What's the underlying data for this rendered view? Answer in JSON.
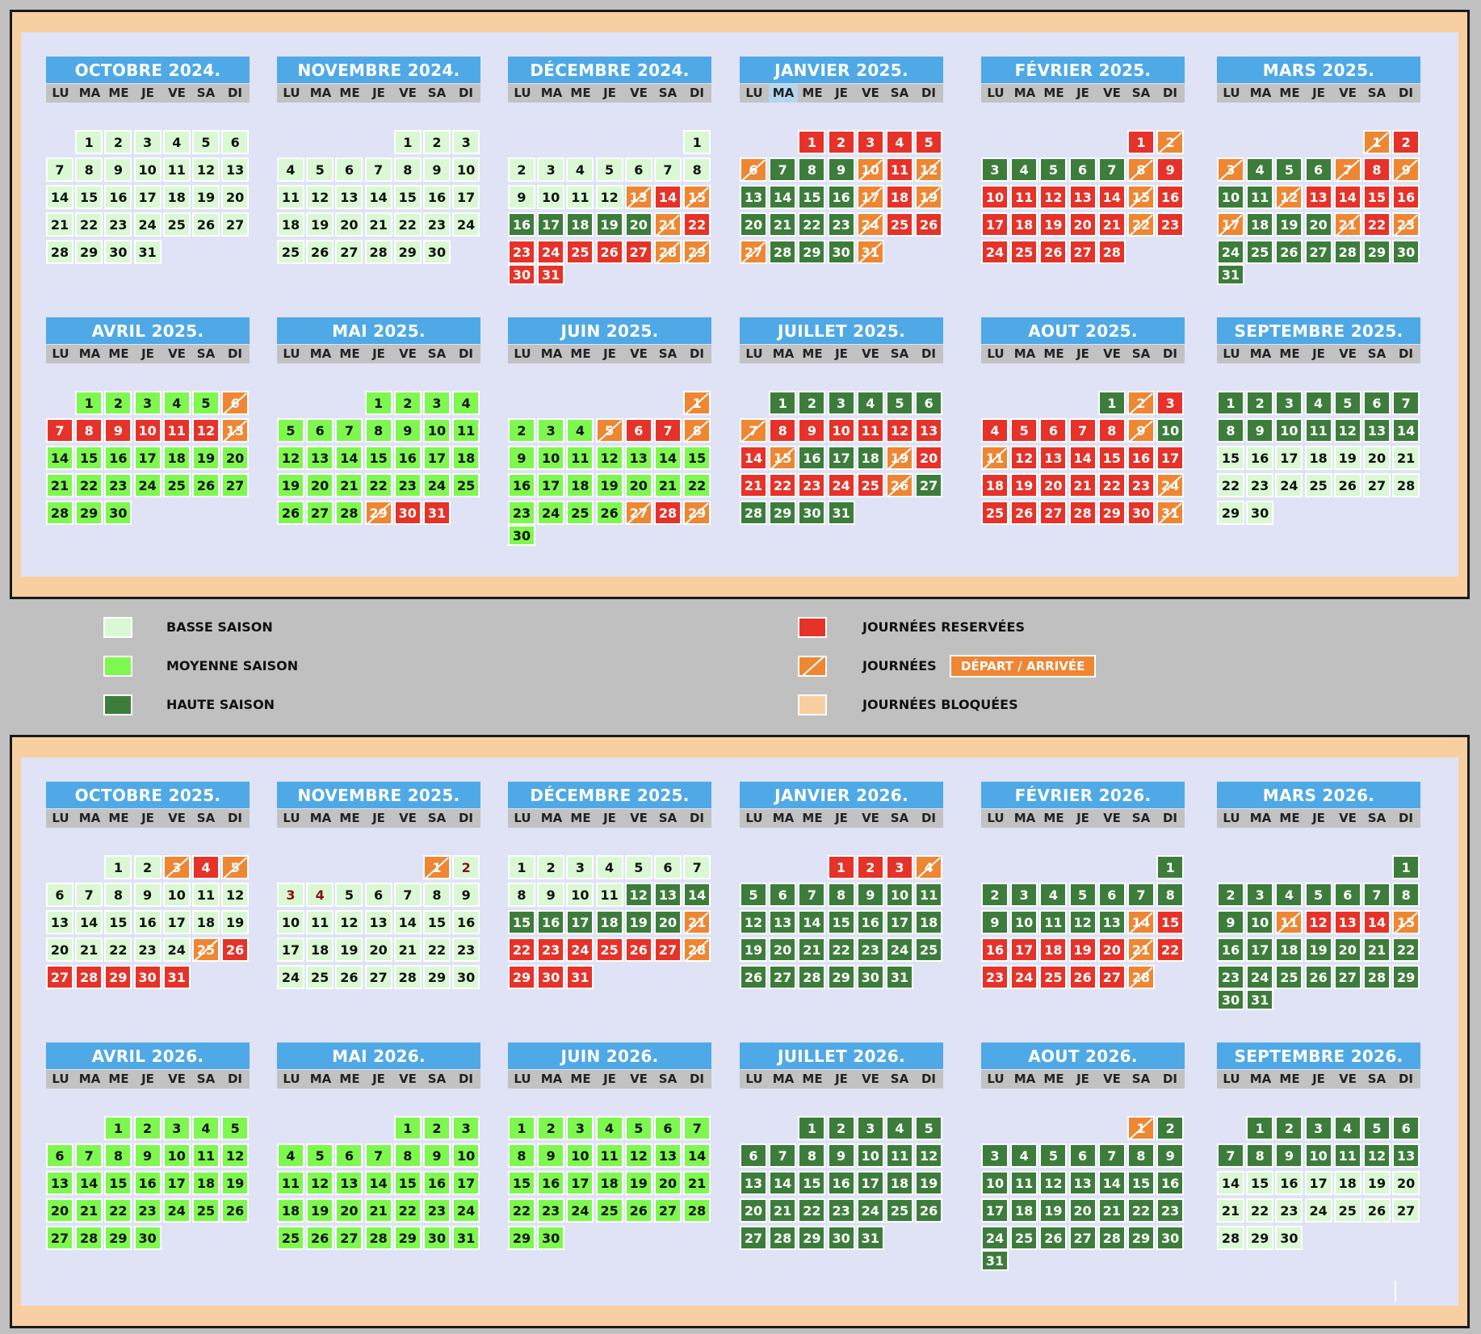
{
  "weekdays": [
    "LU",
    "MA",
    "ME",
    "JE",
    "VE",
    "SA",
    "DI"
  ],
  "legend": {
    "basse": "BASSE SAISON",
    "moyenne": "MOYENNE SAISON",
    "haute": "HAUTE SAISON",
    "reservees": "JOURNÉES RESERVÉES",
    "journees": "JOURNÉES",
    "depart_arrivee": "DÉPART / ARRIVÉE",
    "bloquees": "JOURNÉES BLOQUÉES"
  },
  "colors": {
    "basse": "#d9f8d3",
    "moyenne": "#7ef84e",
    "haute": "#3d7d3b",
    "reservee": "#e63228",
    "depart_arrivee": "#ef8632",
    "bloquee": "#f8cfa0",
    "month_header": "#4fa9e6",
    "background": "#dfe3f5"
  },
  "calendars": [
    {
      "months": [
        {
          "title": "OCTOBRE 2024.",
          "offset": 1,
          "days": 31,
          "status": {
            "1-31": "b"
          }
        },
        {
          "title": "NOVEMBRE 2024.",
          "offset": 4,
          "days": 30,
          "status": {
            "1-30": "b"
          }
        },
        {
          "title": "DÉCEMBRE 2024.",
          "offset": 6,
          "days": 31,
          "status": {
            "1-12": "b",
            "13": "t",
            "14": "r",
            "15": "t",
            "16-20": "h",
            "21": "t",
            "22-27": "r",
            "28-29": "t",
            "30-31": "r"
          }
        },
        {
          "title": "JANVIER 2025.",
          "offset": 2,
          "days": 31,
          "highlightDow": 1,
          "status": {
            "1-5": "r",
            "6": "t",
            "7-9": "h",
            "10": "t",
            "11": "r",
            "12": "t",
            "13-16": "h",
            "17": "t",
            "18": "r",
            "19": "t",
            "20-23": "h",
            "24": "t",
            "25-26": "r",
            "27": "t",
            "28-30": "h",
            "31": "t"
          }
        },
        {
          "title": "FÉVRIER 2025.",
          "offset": 5,
          "days": 28,
          "status": {
            "1": "r",
            "2": "t",
            "3-7": "h",
            "8": "t",
            "9-14": "r",
            "15": "t",
            "16-21": "r",
            "22": "t",
            "23-28": "r"
          }
        },
        {
          "title": "MARS 2025.",
          "offset": 5,
          "days": 31,
          "status": {
            "1": "t",
            "2": "r",
            "3": "t",
            "4-6": "h",
            "7": "t",
            "8": "r",
            "9": "t",
            "10-11": "h",
            "12": "t",
            "13-16": "r",
            "17": "t",
            "18-20": "h",
            "21": "t",
            "22": "r",
            "23": "t",
            "24-31": "h"
          }
        },
        {
          "title": "AVRIL 2025.",
          "offset": 1,
          "days": 30,
          "status": {
            "1-5": "m",
            "6": "t",
            "7-12": "r",
            "13": "t",
            "14-30": "m"
          }
        },
        {
          "title": "MAI 2025.",
          "offset": 3,
          "days": 31,
          "status": {
            "1-28": "m",
            "29": "t",
            "30-31": "r"
          }
        },
        {
          "title": "JUIN 2025.",
          "offset": 6,
          "days": 30,
          "status": {
            "1": "t",
            "2-4": "m",
            "5": "t",
            "6-7": "r",
            "8": "t",
            "9-26": "m",
            "27": "t",
            "28": "r",
            "29": "t",
            "30": "m"
          }
        },
        {
          "title": "JUILLET 2025.",
          "offset": 1,
          "days": 31,
          "status": {
            "1-6": "h",
            "7": "t",
            "8-13": "r",
            "14": "r",
            "15": "t",
            "16-18": "h",
            "19": "t",
            "20-25": "r",
            "26": "t",
            "27-31": "h"
          }
        },
        {
          "title": "AOUT 2025.",
          "offset": 4,
          "days": 31,
          "status": {
            "1": "h",
            "2": "t",
            "3": "r",
            "4-8": "r",
            "9": "t",
            "10": "h",
            "11": "t",
            "12-23": "r",
            "24": "t",
            "25-30": "r",
            "31": "t"
          }
        },
        {
          "title": "SEPTEMBRE 2025.",
          "offset": 0,
          "days": 30,
          "status": {
            "1-14": "h",
            "15-30": "b"
          }
        }
      ]
    },
    {
      "months": [
        {
          "title": "OCTOBRE 2025.",
          "offset": 2,
          "days": 31,
          "status": {
            "1-2": "b",
            "3": "t",
            "4": "r",
            "5": "t",
            "6-24": "b",
            "25": "t",
            "26-31": "r"
          }
        },
        {
          "title": "NOVEMBRE 2025.",
          "offset": 5,
          "days": 30,
          "status": {
            "1": "t",
            "2": "bk",
            "3-4": "bk",
            "5-30": "b"
          }
        },
        {
          "title": "DÉCEMBRE 2025.",
          "offset": 0,
          "days": 31,
          "status": {
            "1-11": "b",
            "12-20": "h",
            "21": "t",
            "22-27": "r",
            "28": "t",
            "29-31": "r"
          }
        },
        {
          "title": "JANVIER 2026.",
          "offset": 3,
          "days": 31,
          "status": {
            "1-3": "r",
            "4": "t",
            "5-31": "h"
          }
        },
        {
          "title": "FÉVRIER 2026.",
          "offset": 6,
          "days": 28,
          "status": {
            "1-13": "h",
            "14": "t",
            "15": "r",
            "16-20": "r",
            "21": "t",
            "22-27": "r",
            "28": "t"
          }
        },
        {
          "title": "MARS 2026.",
          "offset": 6,
          "days": 31,
          "status": {
            "1-10": "h",
            "11": "t",
            "12-14": "r",
            "15": "t",
            "16-31": "h"
          }
        },
        {
          "title": "AVRIL 2026.",
          "offset": 2,
          "days": 30,
          "status": {
            "1-30": "m"
          }
        },
        {
          "title": "MAI 2026.",
          "offset": 4,
          "days": 31,
          "status": {
            "1-31": "m"
          }
        },
        {
          "title": "JUIN 2026.",
          "offset": 0,
          "days": 30,
          "status": {
            "1-30": "m"
          }
        },
        {
          "title": "JUILLET 2026.",
          "offset": 2,
          "days": 31,
          "status": {
            "1-31": "h"
          }
        },
        {
          "title": "AOUT 2026.",
          "offset": 5,
          "days": 31,
          "status": {
            "1": "t",
            "2-31": "h"
          }
        },
        {
          "title": "SEPTEMBRE 2026.",
          "offset": 1,
          "days": 30,
          "status": {
            "1-13": "h",
            "14-30": "b"
          }
        }
      ]
    }
  ]
}
